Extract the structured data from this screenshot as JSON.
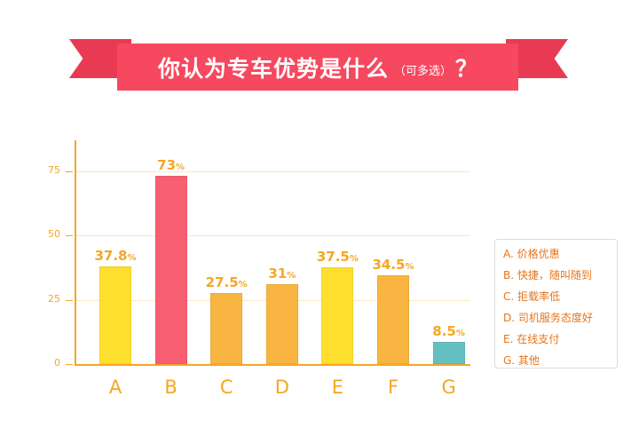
{
  "header": {
    "title": "你认为专车优势是什么",
    "subtitle": "（可多选）",
    "question_mark": "？",
    "ribbon_color": "#f6485f",
    "ribbon_tail_color": "#e83a52"
  },
  "chart_data": {
    "type": "bar",
    "title": "你认为专车优势是什么（可多选）？",
    "xlabel": "",
    "ylabel": "",
    "categories": [
      "A",
      "B",
      "C",
      "D",
      "E",
      "F",
      "G"
    ],
    "values": [
      37.8,
      73,
      27.5,
      31,
      37.5,
      34.5,
      8.5
    ],
    "value_labels": [
      "37.8",
      "73",
      "27.5",
      "31",
      "37.5",
      "34.5",
      "8.5"
    ],
    "value_suffix": "%",
    "colors": [
      "#ffdf2e",
      "#f75e72",
      "#f9b541",
      "#f9b541",
      "#ffdf2e",
      "#f9b541",
      "#64bfc0"
    ],
    "yticks": [
      0,
      25,
      50,
      75
    ],
    "ylim": [
      0,
      85
    ],
    "grid": true,
    "legend_position": "right",
    "legend": [
      "A. 价格优惠",
      "B. 快捷，随叫随到",
      "C. 拒载率低",
      "D. 司机服务态度好",
      "E. 在线支付",
      "G. 其他"
    ]
  }
}
